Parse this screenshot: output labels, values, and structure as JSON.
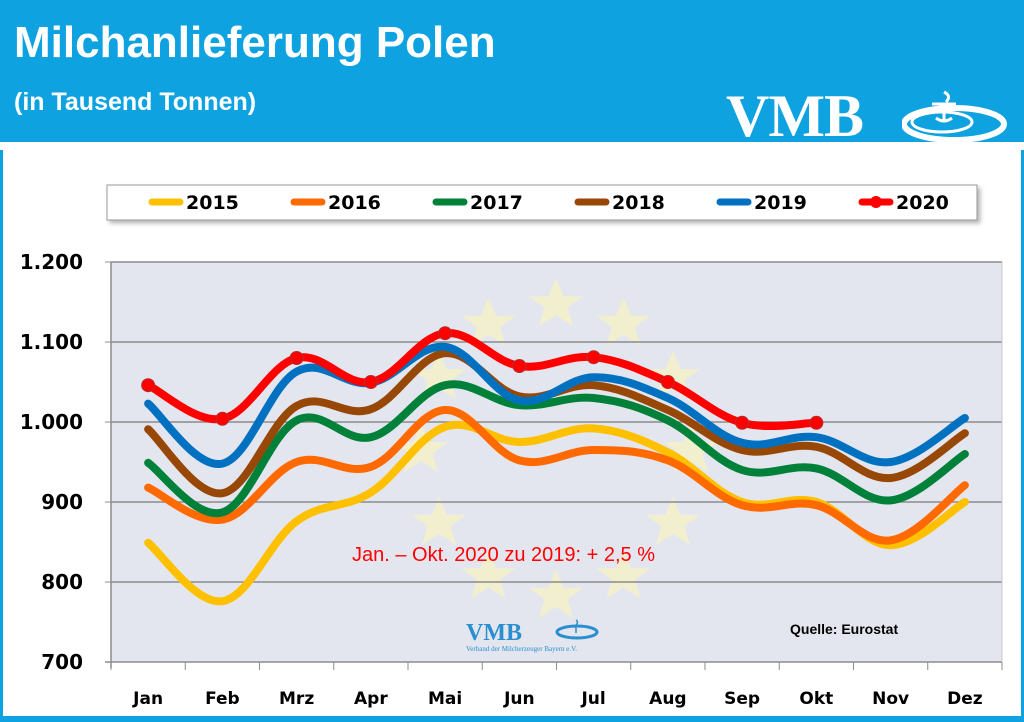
{
  "header": {
    "title": "Milchanlieferung Polen",
    "subtitle": "(in Tausend Tonnen)",
    "logo_text": "VMB",
    "accent_color": "#0ea2e0"
  },
  "footer": {
    "source": "Quelle:  Eurostat",
    "small_logo_text": "VMB",
    "small_logo_subtitle": "Verband der Milcherzeuger Bayern e.V."
  },
  "chart_data": {
    "type": "line",
    "title": "Milchanlieferung Polen",
    "subtitle": "(in Tausend Tonnen)",
    "xlabel": "",
    "ylabel": "",
    "ylim": [
      700,
      1200
    ],
    "yticks": [
      700,
      800,
      900,
      1000,
      1100,
      1200
    ],
    "ytick_labels": [
      "700",
      "800",
      "900",
      "1.000",
      "1.100",
      "1.200"
    ],
    "categories": [
      "Jan",
      "Feb",
      "Mrz",
      "Apr",
      "Mai",
      "Jun",
      "Jul",
      "Aug",
      "Sep",
      "Okt",
      "Nov",
      "Dez"
    ],
    "grid": true,
    "legend_position": "top",
    "annotation": "Jan. – Okt. 2020 zu 2019: + 2,5 %",
    "series": [
      {
        "name": "2015",
        "color": "#ffc000",
        "markers": false,
        "values": [
          849,
          776,
          876,
          912,
          994,
          975,
          992,
          962,
          900,
          900,
          846,
          900
        ]
      },
      {
        "name": "2016",
        "color": "#ff6a00",
        "markers": false,
        "values": [
          918,
          878,
          950,
          944,
          1015,
          952,
          965,
          952,
          896,
          896,
          852,
          921
        ]
      },
      {
        "name": "2017",
        "color": "#00813a",
        "markers": false,
        "values": [
          949,
          887,
          1002,
          981,
          1046,
          1021,
          1030,
          1002,
          940,
          942,
          902,
          960
        ]
      },
      {
        "name": "2018",
        "color": "#984806",
        "markers": false,
        "values": [
          991,
          911,
          1020,
          1016,
          1086,
          1032,
          1046,
          1015,
          965,
          969,
          930,
          986
        ]
      },
      {
        "name": "2019",
        "color": "#0070c0",
        "markers": false,
        "values": [
          1023,
          948,
          1063,
          1049,
          1094,
          1027,
          1056,
          1030,
          974,
          981,
          950,
          1005
        ]
      },
      {
        "name": "2020",
        "color": "#ff0000",
        "markers": true,
        "values": [
          1046,
          1004,
          1080,
          1050,
          1111,
          1070,
          1081,
          1050,
          999,
          999,
          null,
          null
        ]
      }
    ]
  }
}
